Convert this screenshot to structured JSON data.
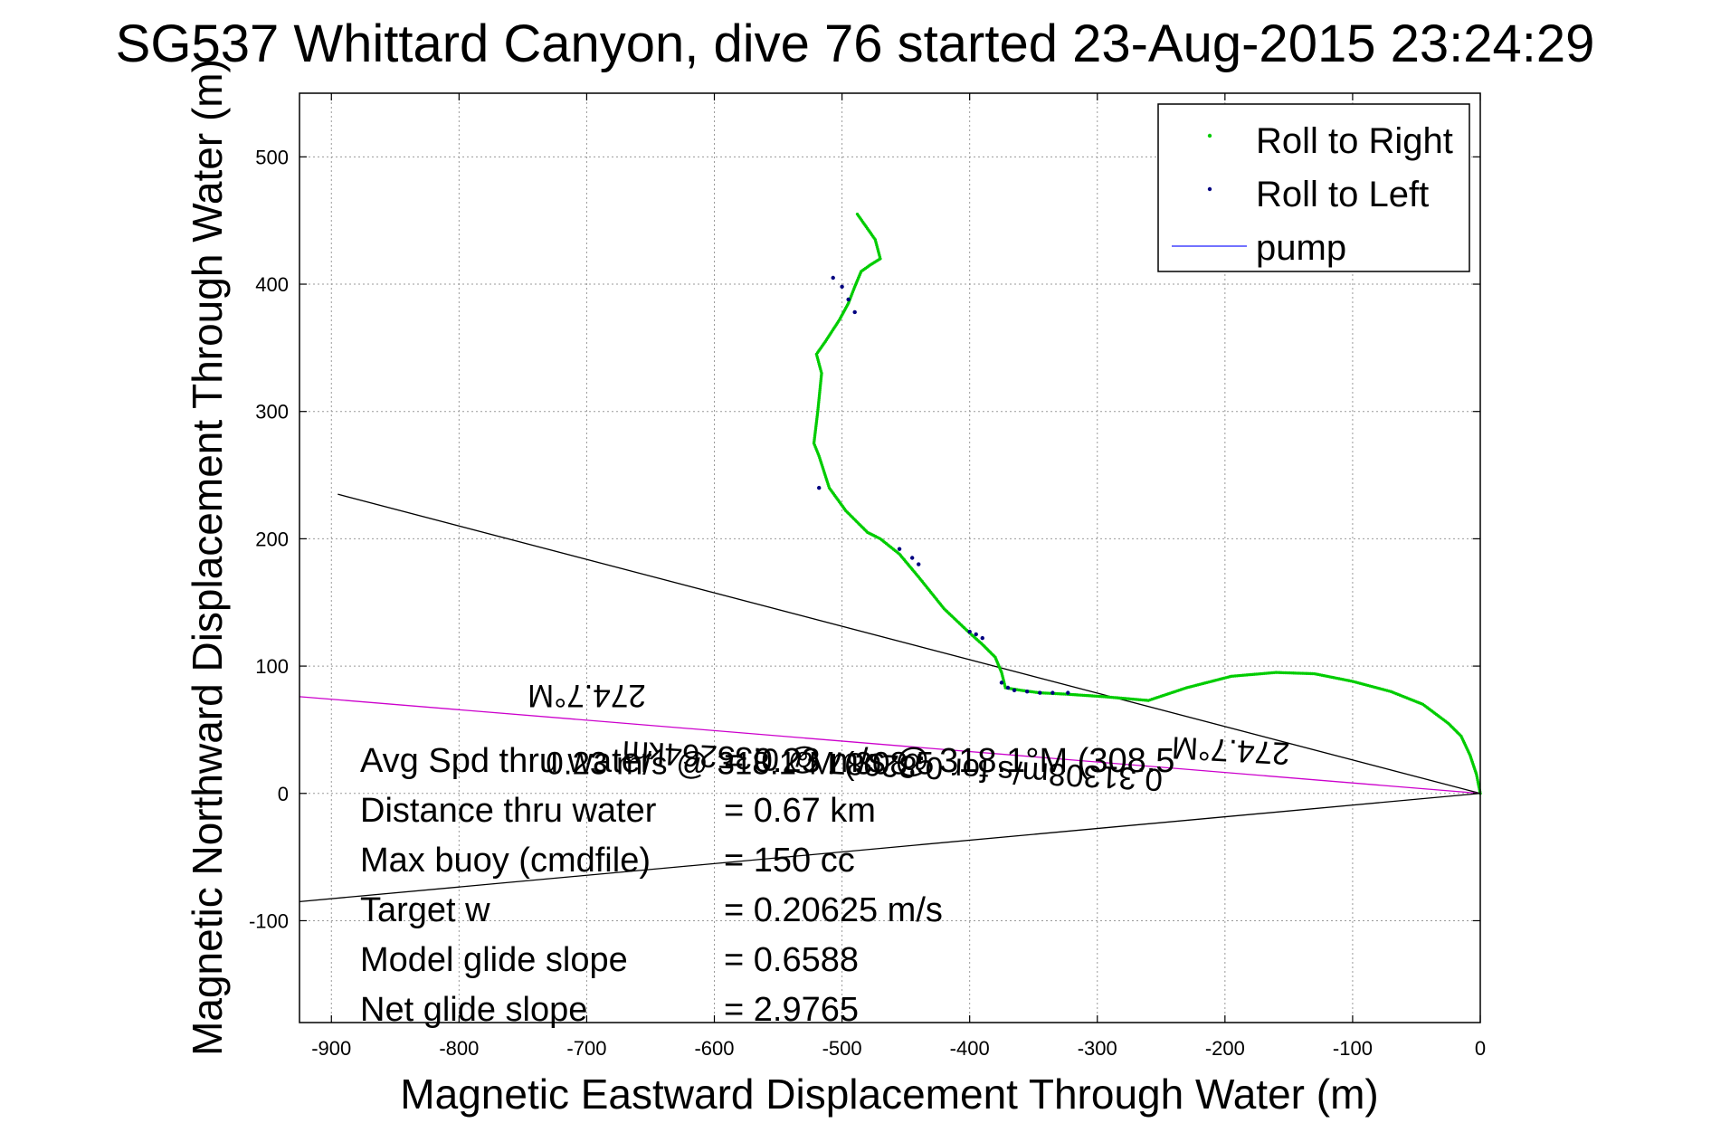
{
  "chart_data": {
    "type": "scatter",
    "title": "SG537 Whittard Canyon, dive 76 started 23-Aug-2015 23:24:29",
    "xlabel": "Magnetic Eastward Displacement Through Water (m)",
    "ylabel": "Magnetic Northward Displacement Through Water (m)",
    "xlim": [
      -925,
      0
    ],
    "ylim": [
      -180,
      550
    ],
    "xticks": [
      "-900",
      "-800",
      "-700",
      "-600",
      "-500",
      "-400",
      "-300",
      "-200",
      "-100",
      "0"
    ],
    "yticks": [
      "-100",
      "0",
      "100",
      "200",
      "300",
      "400",
      "500"
    ],
    "grid": true,
    "legend_position": "top-right",
    "legend": [
      {
        "label": "Roll to Right",
        "color": "#00cc00",
        "marker": "dot"
      },
      {
        "label": "Roll to Left",
        "color": "#000080",
        "marker": "dot"
      },
      {
        "label": "pump",
        "color": "#4444ff",
        "marker": "line"
      }
    ],
    "series": [
      {
        "name": "Roll to Right",
        "color": "#00cc00",
        "x": [
          0,
          -3,
          -8,
          -15,
          -25,
          -45,
          -70,
          -100,
          -130,
          -160,
          -195,
          -230,
          -260,
          -295,
          -325,
          -345,
          -360,
          -372,
          -375,
          -380,
          -390,
          -400,
          -420,
          -440,
          -455,
          -470,
          -480,
          -497,
          -510,
          -518,
          -522,
          -519,
          -516,
          -520,
          -513,
          -502,
          -495,
          -490,
          -485,
          -478,
          -470,
          -474,
          -488
        ],
        "y": [
          0,
          15,
          30,
          45,
          55,
          70,
          80,
          88,
          94,
          95,
          92,
          83,
          73,
          76,
          78,
          79,
          81,
          83,
          95,
          107,
          117,
          126,
          145,
          170,
          188,
          200,
          205,
          222,
          240,
          265,
          275,
          300,
          330,
          345,
          355,
          372,
          385,
          398,
          410,
          415,
          420,
          435,
          455
        ]
      },
      {
        "name": "Roll to Left",
        "color": "#000080",
        "x": [
          -375,
          -370,
          -365,
          -355,
          -345,
          -335,
          -323,
          -390,
          -395,
          -400,
          -440,
          -445,
          -455,
          -490,
          -495,
          -500,
          -507,
          -518
        ],
        "y": [
          87,
          83,
          81,
          80,
          79,
          79,
          79,
          122,
          125,
          127,
          180,
          185,
          192,
          378,
          388,
          398,
          405,
          240
        ]
      }
    ],
    "reference_lines": [
      {
        "name": "heading-line-upper",
        "color": "#000000",
        "x": [
          0,
          -895
        ],
        "y": [
          0,
          235
        ]
      },
      {
        "name": "heading-line-lower",
        "color": "#000000",
        "x": [
          0,
          -925
        ],
        "y": [
          0,
          -85
        ]
      },
      {
        "name": "heading-line-magenta",
        "color": "#cc00cc",
        "x": [
          0,
          -925
        ],
        "y": [
          0,
          76
        ]
      }
    ],
    "annotations": [
      {
        "text": "274.7°M",
        "x": -700,
        "y": 85,
        "rotation": 180
      },
      {
        "text": "274.7°M",
        "x": -195,
        "y": 42,
        "rotation": 183
      },
      {
        "text": "0.31308m/s for 0.82087 @ 0.35264km",
        "x": -460,
        "y": 30,
        "rotation": 183
      },
      {
        "text": "0.23 m/s @ 318.1°M (308.5",
        "x": -580,
        "y": 15,
        "rotation": 0
      }
    ],
    "stats": [
      {
        "label": "Avg Spd thru water",
        "value": "=  0.23 m/s @ 318.1°M (308.5"
      },
      {
        "label": "Distance thru water",
        "value": "=  0.67 km"
      },
      {
        "label": "Max buoy (cmdfile)",
        "value": "= 150 cc"
      },
      {
        "label": "Target w",
        "value": "= 0.20625 m/s"
      },
      {
        "label": "Model glide slope",
        "value": "= 0.6588"
      },
      {
        "label": "Net glide slope",
        "value": "= 2.9765"
      }
    ]
  }
}
